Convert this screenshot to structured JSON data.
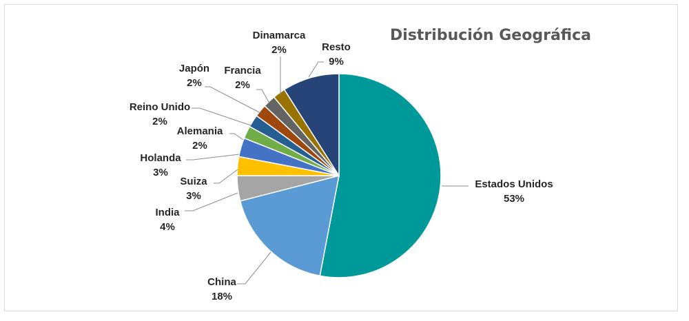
{
  "chart_data": {
    "type": "pie",
    "title": "Distribución Geográfica",
    "slices": [
      {
        "name": "Estados Unidos",
        "value": 53,
        "label": "53%",
        "color": "#009999"
      },
      {
        "name": "China",
        "value": 18,
        "label": "18%",
        "color": "#5b9bd5"
      },
      {
        "name": "India",
        "value": 4,
        "label": "4%",
        "color": "#a5a5a5"
      },
      {
        "name": "Suiza",
        "value": 3,
        "label": "3%",
        "color": "#ffc000"
      },
      {
        "name": "Holanda",
        "value": 3,
        "label": "3%",
        "color": "#4472c4"
      },
      {
        "name": "Alemania",
        "value": 2,
        "label": "2%",
        "color": "#70ad47"
      },
      {
        "name": "Reino Unido",
        "value": 2,
        "label": "2%",
        "color": "#255e91"
      },
      {
        "name": "Japón",
        "value": 2,
        "label": "2%",
        "color": "#9e480e"
      },
      {
        "name": "Francia",
        "value": 2,
        "label": "2%",
        "color": "#636363"
      },
      {
        "name": "Dinamarca",
        "value": 2,
        "label": "2%",
        "color": "#997300"
      },
      {
        "name": "Resto",
        "value": 9,
        "label": "9%",
        "color": "#264478"
      }
    ]
  }
}
